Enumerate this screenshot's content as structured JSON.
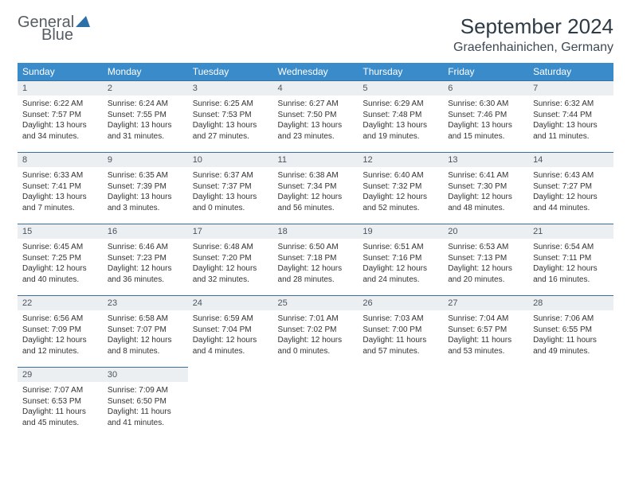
{
  "logo": {
    "line1": "General",
    "line2": "Blue"
  },
  "title": "September 2024",
  "location": "Graefenhainichen, Germany",
  "colors": {
    "header_bg": "#3a8bc9",
    "header_text": "#ffffff",
    "daynum_bg": "#eceff2",
    "daynum_border": "#3a6f9e",
    "text": "#333333",
    "logo_gray": "#555c63",
    "logo_blue": "#2f6fa8"
  },
  "typography": {
    "title_fontsize": 26,
    "location_fontsize": 16,
    "weekday_fontsize": 12,
    "daynum_fontsize": 11,
    "body_fontsize": 10
  },
  "weekdays": [
    "Sunday",
    "Monday",
    "Tuesday",
    "Wednesday",
    "Thursday",
    "Friday",
    "Saturday"
  ],
  "weeks": [
    [
      {
        "n": "1",
        "sr": "6:22 AM",
        "ss": "7:57 PM",
        "dl": "13 hours and 34 minutes."
      },
      {
        "n": "2",
        "sr": "6:24 AM",
        "ss": "7:55 PM",
        "dl": "13 hours and 31 minutes."
      },
      {
        "n": "3",
        "sr": "6:25 AM",
        "ss": "7:53 PM",
        "dl": "13 hours and 27 minutes."
      },
      {
        "n": "4",
        "sr": "6:27 AM",
        "ss": "7:50 PM",
        "dl": "13 hours and 23 minutes."
      },
      {
        "n": "5",
        "sr": "6:29 AM",
        "ss": "7:48 PM",
        "dl": "13 hours and 19 minutes."
      },
      {
        "n": "6",
        "sr": "6:30 AM",
        "ss": "7:46 PM",
        "dl": "13 hours and 15 minutes."
      },
      {
        "n": "7",
        "sr": "6:32 AM",
        "ss": "7:44 PM",
        "dl": "13 hours and 11 minutes."
      }
    ],
    [
      {
        "n": "8",
        "sr": "6:33 AM",
        "ss": "7:41 PM",
        "dl": "13 hours and 7 minutes."
      },
      {
        "n": "9",
        "sr": "6:35 AM",
        "ss": "7:39 PM",
        "dl": "13 hours and 3 minutes."
      },
      {
        "n": "10",
        "sr": "6:37 AM",
        "ss": "7:37 PM",
        "dl": "13 hours and 0 minutes."
      },
      {
        "n": "11",
        "sr": "6:38 AM",
        "ss": "7:34 PM",
        "dl": "12 hours and 56 minutes."
      },
      {
        "n": "12",
        "sr": "6:40 AM",
        "ss": "7:32 PM",
        "dl": "12 hours and 52 minutes."
      },
      {
        "n": "13",
        "sr": "6:41 AM",
        "ss": "7:30 PM",
        "dl": "12 hours and 48 minutes."
      },
      {
        "n": "14",
        "sr": "6:43 AM",
        "ss": "7:27 PM",
        "dl": "12 hours and 44 minutes."
      }
    ],
    [
      {
        "n": "15",
        "sr": "6:45 AM",
        "ss": "7:25 PM",
        "dl": "12 hours and 40 minutes."
      },
      {
        "n": "16",
        "sr": "6:46 AM",
        "ss": "7:23 PM",
        "dl": "12 hours and 36 minutes."
      },
      {
        "n": "17",
        "sr": "6:48 AM",
        "ss": "7:20 PM",
        "dl": "12 hours and 32 minutes."
      },
      {
        "n": "18",
        "sr": "6:50 AM",
        "ss": "7:18 PM",
        "dl": "12 hours and 28 minutes."
      },
      {
        "n": "19",
        "sr": "6:51 AM",
        "ss": "7:16 PM",
        "dl": "12 hours and 24 minutes."
      },
      {
        "n": "20",
        "sr": "6:53 AM",
        "ss": "7:13 PM",
        "dl": "12 hours and 20 minutes."
      },
      {
        "n": "21",
        "sr": "6:54 AM",
        "ss": "7:11 PM",
        "dl": "12 hours and 16 minutes."
      }
    ],
    [
      {
        "n": "22",
        "sr": "6:56 AM",
        "ss": "7:09 PM",
        "dl": "12 hours and 12 minutes."
      },
      {
        "n": "23",
        "sr": "6:58 AM",
        "ss": "7:07 PM",
        "dl": "12 hours and 8 minutes."
      },
      {
        "n": "24",
        "sr": "6:59 AM",
        "ss": "7:04 PM",
        "dl": "12 hours and 4 minutes."
      },
      {
        "n": "25",
        "sr": "7:01 AM",
        "ss": "7:02 PM",
        "dl": "12 hours and 0 minutes."
      },
      {
        "n": "26",
        "sr": "7:03 AM",
        "ss": "7:00 PM",
        "dl": "11 hours and 57 minutes."
      },
      {
        "n": "27",
        "sr": "7:04 AM",
        "ss": "6:57 PM",
        "dl": "11 hours and 53 minutes."
      },
      {
        "n": "28",
        "sr": "7:06 AM",
        "ss": "6:55 PM",
        "dl": "11 hours and 49 minutes."
      }
    ],
    [
      {
        "n": "29",
        "sr": "7:07 AM",
        "ss": "6:53 PM",
        "dl": "11 hours and 45 minutes."
      },
      {
        "n": "30",
        "sr": "7:09 AM",
        "ss": "6:50 PM",
        "dl": "11 hours and 41 minutes."
      },
      null,
      null,
      null,
      null,
      null
    ]
  ],
  "labels": {
    "sunrise": "Sunrise:",
    "sunset": "Sunset:",
    "daylight": "Daylight:"
  }
}
